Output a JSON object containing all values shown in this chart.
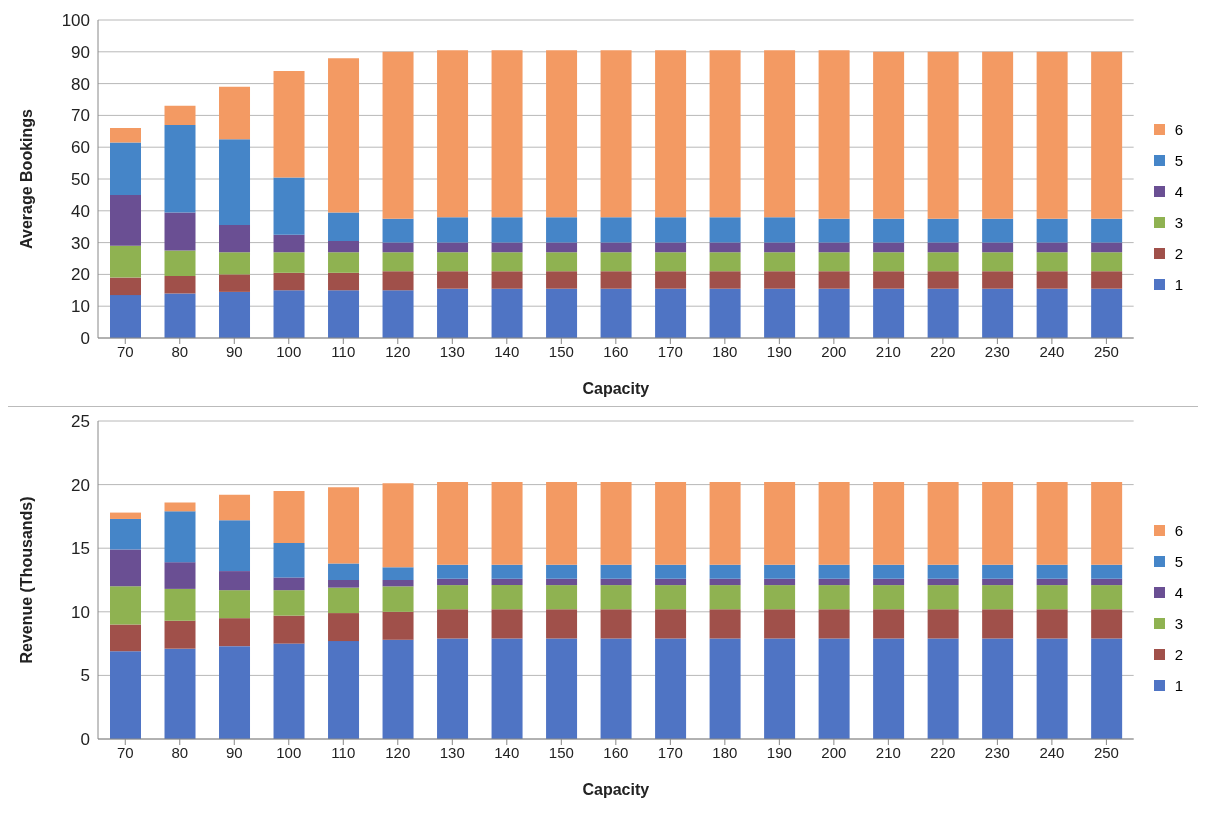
{
  "chart_data": [
    {
      "type": "bar",
      "stacked": true,
      "xlabel": "Capacity",
      "ylabel": "Average Bookings",
      "categories": [
        "70",
        "80",
        "90",
        "100",
        "110",
        "120",
        "130",
        "140",
        "150",
        "160",
        "170",
        "180",
        "190",
        "200",
        "210",
        "220",
        "230",
        "240",
        "250"
      ],
      "ylim": [
        0,
        100
      ],
      "yticks": [
        0,
        10,
        20,
        30,
        40,
        50,
        60,
        70,
        80,
        90,
        100
      ],
      "grid": "y",
      "legend": "right",
      "series": [
        {
          "name": "1",
          "color": "#4f74c4",
          "values": [
            13.5,
            14,
            14.5,
            15,
            15,
            15,
            15.5,
            15.5,
            15.5,
            15.5,
            15.5,
            15.5,
            15.5,
            15.5,
            15.5,
            15.5,
            15.5,
            15.5,
            15.5
          ]
        },
        {
          "name": "2",
          "color": "#a0504a",
          "values": [
            5.5,
            5.5,
            5.5,
            5.5,
            5.5,
            6,
            5.5,
            5.5,
            5.5,
            5.5,
            5.5,
            5.5,
            5.5,
            5.5,
            5.5,
            5.5,
            5.5,
            5.5,
            5.5
          ]
        },
        {
          "name": "3",
          "color": "#8fb251",
          "values": [
            10,
            8,
            7,
            6.5,
            6.5,
            6,
            6,
            6,
            6,
            6,
            6,
            6,
            6,
            6,
            6,
            6,
            6,
            6,
            6
          ]
        },
        {
          "name": "4",
          "color": "#6a4f93",
          "values": [
            16,
            12,
            8.5,
            5.5,
            3.5,
            3,
            3,
            3,
            3,
            3,
            3,
            3,
            3,
            3,
            3,
            3,
            3,
            3,
            3
          ]
        },
        {
          "name": "5",
          "color": "#4585c8",
          "values": [
            16.5,
            27.5,
            27,
            18,
            9,
            7.5,
            8,
            8,
            8,
            8,
            8,
            8,
            8,
            7.5,
            7.5,
            7.5,
            7.5,
            7.5,
            7.5
          ]
        },
        {
          "name": "6",
          "color": "#f39a63",
          "values": [
            4.5,
            6,
            16.5,
            33.5,
            48.5,
            52.5,
            52.5,
            52.5,
            52.5,
            52.5,
            52.5,
            52.5,
            52.5,
            53,
            52.5,
            52.5,
            52.5,
            52.5,
            52.5
          ]
        }
      ]
    },
    {
      "type": "bar",
      "stacked": true,
      "xlabel": "Capacity",
      "ylabel": "Revenue (Thousands)",
      "categories": [
        "70",
        "80",
        "90",
        "100",
        "110",
        "120",
        "130",
        "140",
        "150",
        "160",
        "170",
        "180",
        "190",
        "200",
        "210",
        "220",
        "230",
        "240",
        "250"
      ],
      "ylim": [
        0,
        25
      ],
      "yticks": [
        0,
        5,
        10,
        15,
        20,
        25
      ],
      "grid": "y",
      "legend": "right",
      "series": [
        {
          "name": "1",
          "color": "#4f74c4",
          "values": [
            6.9,
            7.1,
            7.3,
            7.5,
            7.7,
            7.8,
            7.9,
            7.9,
            7.9,
            7.9,
            7.9,
            7.9,
            7.9,
            7.9,
            7.9,
            7.9,
            7.9,
            7.9,
            7.9
          ]
        },
        {
          "name": "2",
          "color": "#a0504a",
          "values": [
            2.1,
            2.2,
            2.2,
            2.2,
            2.2,
            2.2,
            2.3,
            2.3,
            2.3,
            2.3,
            2.3,
            2.3,
            2.3,
            2.3,
            2.3,
            2.3,
            2.3,
            2.3,
            2.3
          ]
        },
        {
          "name": "3",
          "color": "#8fb251",
          "values": [
            3.0,
            2.5,
            2.2,
            2.0,
            2.0,
            2.0,
            1.9,
            1.9,
            1.9,
            1.9,
            1.9,
            1.9,
            1.9,
            1.9,
            1.9,
            1.9,
            1.9,
            1.9,
            1.9
          ]
        },
        {
          "name": "4",
          "color": "#6a4f93",
          "values": [
            2.9,
            2.1,
            1.5,
            1.0,
            0.6,
            0.5,
            0.5,
            0.5,
            0.5,
            0.5,
            0.5,
            0.5,
            0.5,
            0.5,
            0.5,
            0.5,
            0.5,
            0.5,
            0.5
          ]
        },
        {
          "name": "5",
          "color": "#4585c8",
          "values": [
            2.4,
            4.0,
            4.0,
            2.7,
            1.3,
            1.0,
            1.1,
            1.1,
            1.1,
            1.1,
            1.1,
            1.1,
            1.1,
            1.1,
            1.1,
            1.1,
            1.1,
            1.1,
            1.1
          ]
        },
        {
          "name": "6",
          "color": "#f39a63",
          "values": [
            0.5,
            0.7,
            2.0,
            4.1,
            6.0,
            6.6,
            6.5,
            6.5,
            6.5,
            6.5,
            6.5,
            6.5,
            6.5,
            6.5,
            6.5,
            6.5,
            6.5,
            6.5,
            6.5
          ]
        }
      ]
    }
  ]
}
